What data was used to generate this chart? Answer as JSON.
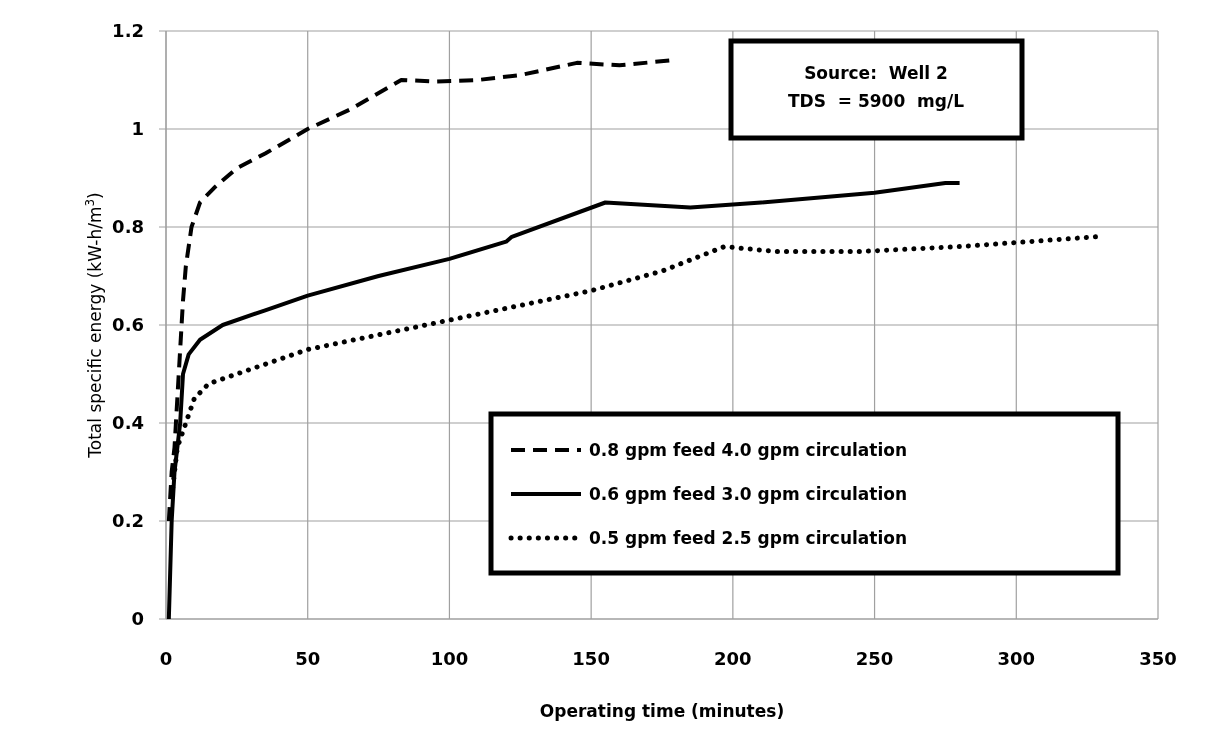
{
  "chart_data": {
    "type": "line",
    "xlabel": "Operating time (minutes)",
    "ylabel": "Total specific energy (kW-h/m$^{3}$)",
    "xlim": [
      0,
      350
    ],
    "ylim": [
      0,
      1.2
    ],
    "xticks": [
      0,
      50,
      100,
      150,
      200,
      250,
      300,
      350
    ],
    "yticks": [
      0,
      0.2,
      0.4,
      0.6,
      0.8,
      1,
      1.2
    ],
    "grid": true,
    "legend": "bottom right",
    "marker": "none",
    "annotations": [
      "Source:  Well 2\nTDS  = 5900  mg/L"
    ],
    "series": [
      {
        "name": "0.8 gpm feed 4.0 gpm circulation",
        "color": "#000000",
        "line_style": "dashed",
        "x": [
          1,
          2,
          3,
          4,
          5,
          6,
          7,
          9,
          12,
          17,
          25,
          35,
          50,
          65,
          83,
          95,
          110,
          125,
          145,
          160,
          178
        ],
        "values": [
          0.2,
          0.3,
          0.35,
          0.45,
          0.55,
          0.65,
          0.72,
          0.8,
          0.85,
          0.88,
          0.92,
          0.95,
          1.0,
          1.04,
          1.1,
          1.097,
          1.1,
          1.11,
          1.135,
          1.13,
          1.14
        ]
      },
      {
        "name": "0.6 gpm feed 3.0 gpm circulation",
        "color": "#000000",
        "line_style": "solid",
        "x": [
          1,
          2,
          3,
          5,
          6,
          8,
          12,
          20,
          35,
          50,
          75,
          100,
          120,
          122,
          155,
          185,
          210,
          250,
          275,
          280
        ],
        "values": [
          0,
          0.2,
          0.3,
          0.4,
          0.5,
          0.54,
          0.57,
          0.6,
          0.63,
          0.66,
          0.7,
          0.735,
          0.77,
          0.78,
          0.85,
          0.84,
          0.85,
          0.87,
          0.89,
          0.89
        ]
      },
      {
        "name": "0.5 gpm feed 2.5 gpm circulation",
        "color": "#000000",
        "line_style": "dotted",
        "x": [
          2,
          4,
          7,
          10,
          15,
          30,
          50,
          100,
          150,
          175,
          197,
          215,
          245,
          280,
          328
        ],
        "values": [
          0.25,
          0.35,
          0.4,
          0.45,
          0.48,
          0.51,
          0.55,
          0.61,
          0.67,
          0.71,
          0.76,
          0.75,
          0.75,
          0.76,
          0.78
        ]
      }
    ]
  }
}
